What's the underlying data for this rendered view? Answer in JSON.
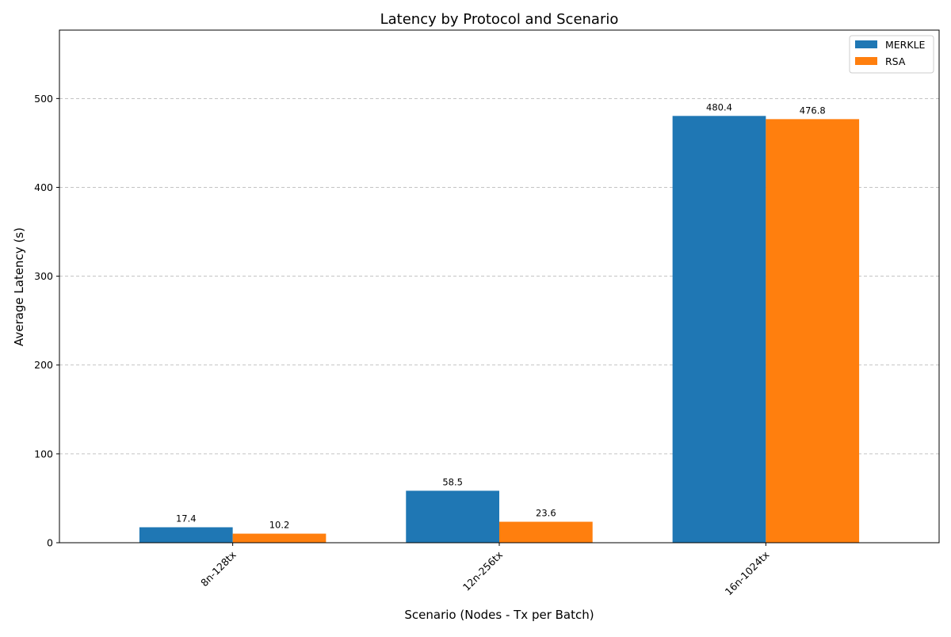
{
  "chart_data": {
    "type": "bar",
    "title": "Latency by Protocol and Scenario",
    "xlabel": "Scenario (Nodes - Tx per Batch)",
    "ylabel": "Average Latency (s)",
    "categories": [
      "8n-128tx",
      "12n-256tx",
      "16n-1024tx"
    ],
    "series": [
      {
        "name": "MERKLE",
        "values": [
          17.4,
          58.5,
          480.4
        ],
        "color": "#1f77b4"
      },
      {
        "name": "RSA",
        "values": [
          10.2,
          23.6,
          476.8
        ],
        "color": "#ff7f0e"
      }
    ],
    "ylim": [
      0,
      577
    ],
    "yticks": [
      0,
      100,
      200,
      300,
      400,
      500
    ],
    "grid": "y-dashed",
    "legend": "top-right",
    "data_label_format": "0.1f",
    "xtick_rotation": 45
  }
}
